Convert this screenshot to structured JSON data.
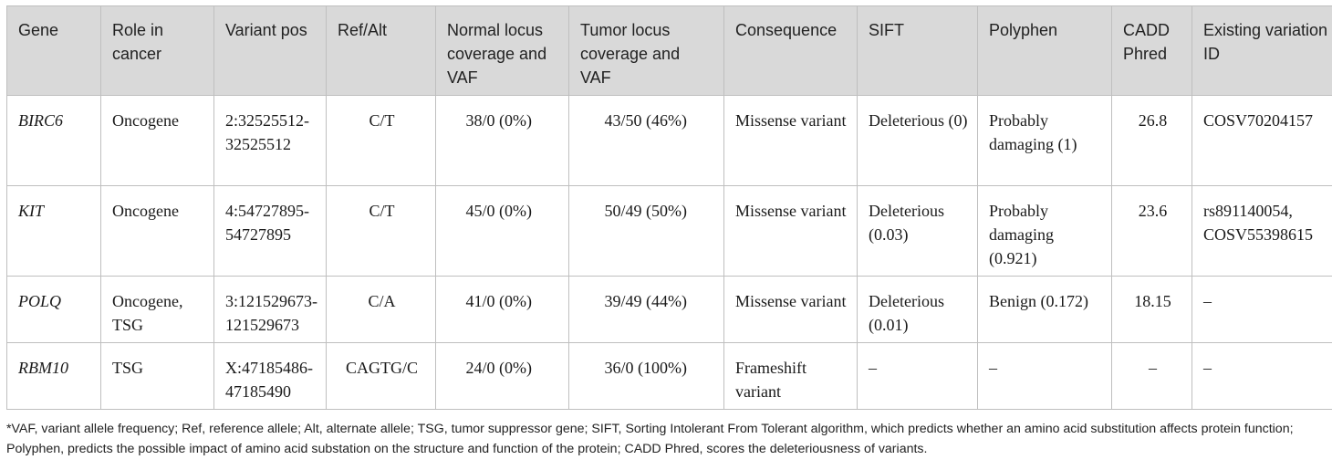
{
  "table": {
    "headers": [
      "Gene",
      "Role in cancer",
      "Variant pos",
      "Ref/Alt",
      "Normal locus coverage and VAF",
      "Tumor locus coverage and VAF",
      "Consequence",
      "SIFT",
      "Polyphen",
      "CADD Phred",
      "Existing variation ID"
    ],
    "rows": [
      {
        "gene": "BIRC6",
        "role": "Oncogene",
        "variant_pos": "2:32525512-32525512",
        "ref_alt": "C/T",
        "normal": "38/0 (0%)",
        "tumor": "43/50 (46%)",
        "consequence": "Missense variant",
        "sift": "Deleterious (0)",
        "polyphen": "Probably damaging (1)",
        "cadd": "26.8",
        "variation_id": "COSV70204157"
      },
      {
        "gene": "KIT",
        "role": "Oncogene",
        "variant_pos": "4:54727895-54727895",
        "ref_alt": "C/T",
        "normal": "45/0 (0%)",
        "tumor": "50/49 (50%)",
        "consequence": "Missense variant",
        "sift": "Deleterious (0.03)",
        "polyphen": "Probably damaging (0.921)",
        "cadd": "23.6",
        "variation_id": "rs891140054, COSV55398615"
      },
      {
        "gene": "POLQ",
        "role": "Oncogene, TSG",
        "variant_pos": "3:121529673-121529673",
        "ref_alt": "C/A",
        "normal": "41/0 (0%)",
        "tumor": "39/49 (44%)",
        "consequence": "Missense variant",
        "sift": "Deleterious (0.01)",
        "polyphen": "Benign (0.172)",
        "cadd": "18.15",
        "variation_id": "–"
      },
      {
        "gene": "RBM10",
        "role": "TSG",
        "variant_pos": "X:47185486-47185490",
        "ref_alt": "CAGTG/C",
        "normal": "24/0 (0%)",
        "tumor": "36/0 (100%)",
        "consequence": "Frameshift variant",
        "sift": "–",
        "polyphen": "–",
        "cadd": "–",
        "variation_id": "–"
      }
    ]
  },
  "footnote": "*VAF, variant allele frequency; Ref, reference allele; Alt, alternate allele; TSG, tumor suppressor gene; SIFT, Sorting Intolerant From Tolerant algorithm, which predicts whether an amino acid substitution affects protein function; Polyphen, predicts the possible impact of amino acid substation on the structure and function of the protein; CADD Phred, scores the deleteriousness of variants."
}
